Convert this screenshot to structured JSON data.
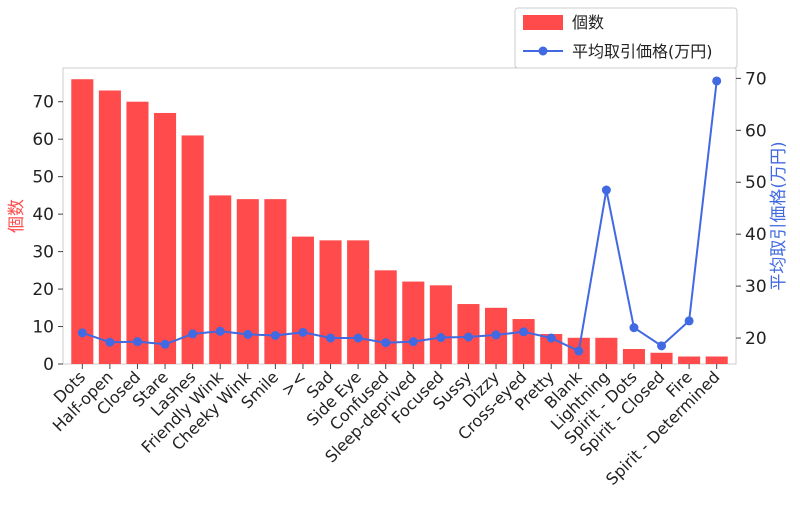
{
  "chart_data": {
    "type": "bar+line",
    "categories": [
      "Dots",
      "Half-open",
      "Closed",
      "Stare",
      "Lashes",
      "Friendly Wink",
      "Cheeky Wink",
      "Smile",
      "><",
      "Sad",
      "Side Eye",
      "Confused",
      "Sleep-deprived",
      "Focused",
      "Sussy",
      "Dizzy",
      "Cross-eyed",
      "Pretty",
      "Blank",
      "Lightning",
      "Spirit - Dots",
      "Spirit - Closed",
      "Fire",
      "Spirit - Determined"
    ],
    "series": [
      {
        "name": "個数",
        "type": "bar",
        "axis": "left",
        "color": "#ff4b4b",
        "values": [
          76,
          73,
          70,
          67,
          61,
          45,
          44,
          44,
          34,
          33,
          33,
          25,
          22,
          21,
          16,
          15,
          12,
          8,
          7,
          7,
          4,
          3,
          2,
          2
        ]
      },
      {
        "name": "平均取引価格(万円)",
        "type": "line",
        "axis": "right",
        "color": "#4169e1",
        "values": [
          21.0,
          19.2,
          19.3,
          18.8,
          20.8,
          21.3,
          20.7,
          20.5,
          21.1,
          20.0,
          20.0,
          19.1,
          19.3,
          20.1,
          20.2,
          20.6,
          21.2,
          20.0,
          17.5,
          48.5,
          22.0,
          18.5,
          23.3,
          69.5
        ]
      }
    ],
    "ylabel": "個数",
    "ylabel_right": "平均取引価格(万円)",
    "ylim": [
      0,
      79
    ],
    "ylim_right": [
      15,
      72
    ],
    "yticks": [
      0,
      10,
      20,
      30,
      40,
      50,
      60,
      70
    ],
    "yticks_right": [
      20,
      30,
      40,
      50,
      60,
      70
    ],
    "legend_position": "top-right",
    "grid": false
  },
  "colors": {
    "bar": "#ff4b4b",
    "line": "#4169e1",
    "axis": "#cccccc"
  }
}
